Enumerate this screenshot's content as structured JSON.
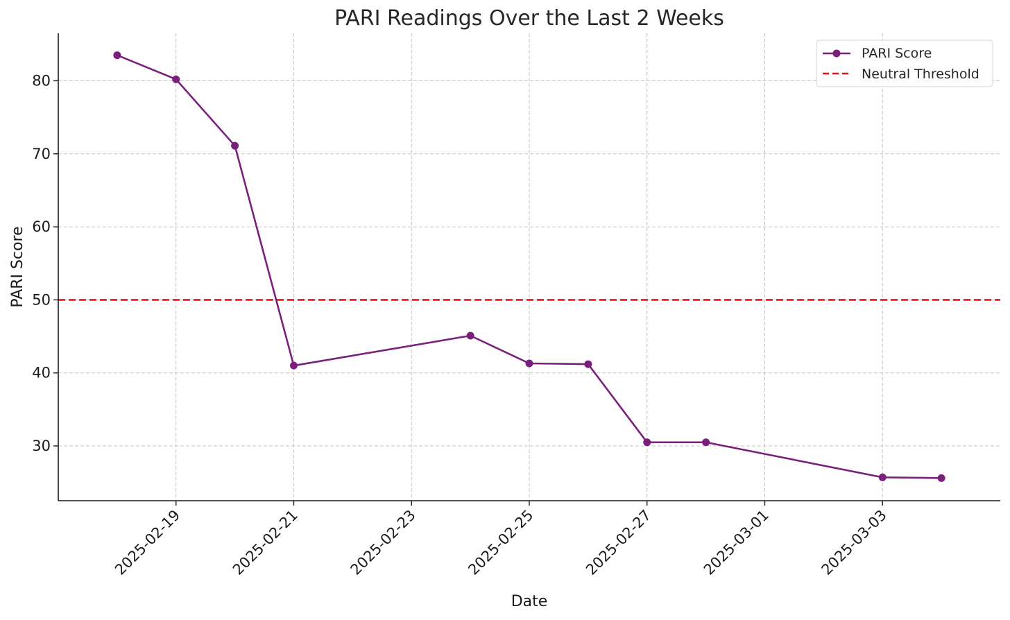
{
  "chart_data": {
    "type": "line",
    "title": "PARI Readings Over the Last 2 Weeks",
    "xlabel": "Date",
    "ylabel": "PARI Score",
    "x_type": "date",
    "xlim": [
      "2025-02-17",
      "2025-03-05"
    ],
    "ylim": [
      22.5,
      86.5
    ],
    "x_ticks": [
      "2025-02-19",
      "2025-02-21",
      "2025-02-23",
      "2025-02-25",
      "2025-02-27",
      "2025-03-01",
      "2025-03-03"
    ],
    "y_ticks": [
      30,
      40,
      50,
      60,
      70,
      80
    ],
    "grid": true,
    "legend_position": "top-right",
    "series": [
      {
        "name": "PARI Score",
        "color": "#7b1f7d",
        "marker": "circle",
        "points": [
          {
            "x": "2025-02-18",
            "y": 83.5
          },
          {
            "x": "2025-02-19",
            "y": 80.2
          },
          {
            "x": "2025-02-20",
            "y": 71.1
          },
          {
            "x": "2025-02-21",
            "y": 41.0
          },
          {
            "x": "2025-02-24",
            "y": 45.1
          },
          {
            "x": "2025-02-25",
            "y": 41.3
          },
          {
            "x": "2025-02-26",
            "y": 41.2
          },
          {
            "x": "2025-02-27",
            "y": 30.5
          },
          {
            "x": "2025-02-28",
            "y": 30.5
          },
          {
            "x": "2025-03-03",
            "y": 25.7
          },
          {
            "x": "2025-03-04",
            "y": 25.6
          }
        ]
      }
    ],
    "reference_lines": [
      {
        "name": "Neutral Threshold",
        "y": 50,
        "color": "#e8141b",
        "style": "dashed"
      }
    ]
  }
}
